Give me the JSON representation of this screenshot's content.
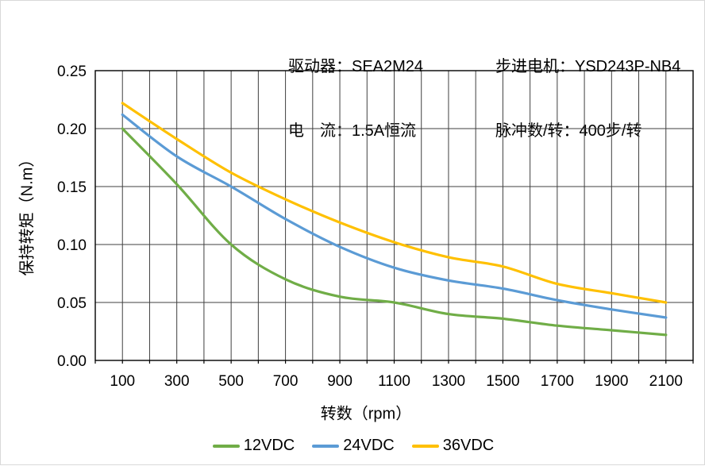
{
  "header": {
    "left": [
      "驱动器：SEA2M24",
      "电　流：1.5A恒流"
    ],
    "right": [
      "步进电机：YSD243P-NB4",
      "脉冲数/转：400步/转"
    ]
  },
  "chart_data": {
    "type": "line",
    "title": "",
    "xlabel": "转数（rpm）",
    "ylabel": "保持转矩（N.m）",
    "xlim": [
      0,
      2200
    ],
    "ylim": [
      0,
      0.25
    ],
    "grid": true,
    "x_grid_step": 100,
    "y_grid_step": 0.05,
    "legend_position": "bottom",
    "x": [
      100,
      300,
      500,
      700,
      900,
      1100,
      1300,
      1500,
      1700,
      1900,
      2100
    ],
    "x_tick_labels": [
      "100",
      "300",
      "500",
      "700",
      "900",
      "1100",
      "1300",
      "1500",
      "1700",
      "1900",
      "2100"
    ],
    "y_tick_labels": [
      "0.00",
      "0.05",
      "0.10",
      "0.15",
      "0.20",
      "0.25"
    ],
    "series": [
      {
        "name": "12VDC",
        "color": "#70AD47",
        "values": [
          0.2,
          0.152,
          0.1,
          0.07,
          0.055,
          0.05,
          0.04,
          0.036,
          0.03,
          0.026,
          0.022
        ]
      },
      {
        "name": "24VDC",
        "color": "#5B9BD5",
        "values": [
          0.212,
          0.176,
          0.15,
          0.122,
          0.098,
          0.08,
          0.069,
          0.062,
          0.052,
          0.044,
          0.037
        ]
      },
      {
        "name": "36VDC",
        "color": "#FFC000",
        "values": [
          0.222,
          0.191,
          0.162,
          0.139,
          0.119,
          0.102,
          0.089,
          0.081,
          0.066,
          0.058,
          0.05
        ]
      }
    ],
    "colors": {
      "grid": "#3f3f3f",
      "axis": "#000000"
    }
  }
}
